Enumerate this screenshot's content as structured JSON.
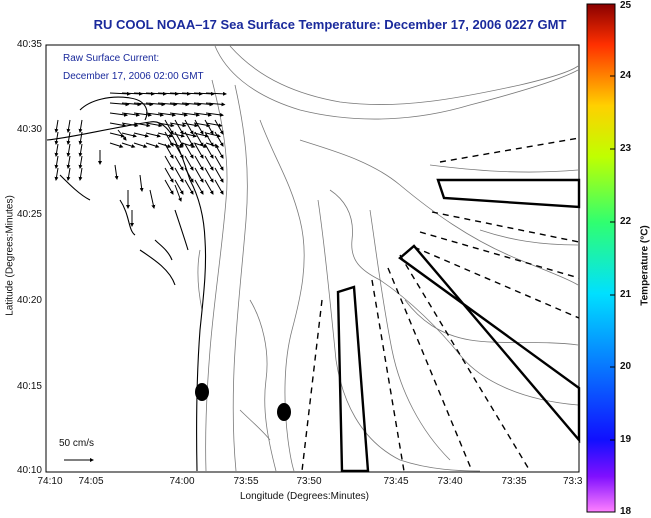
{
  "title": "RU COOL  NOAA–17  Sea Surface Temperature:  December 17, 2006 0227 GMT",
  "annotation": {
    "line1": "Raw Surface Current:",
    "line2": "December 17, 2006 02:00 GMT"
  },
  "scale_label": "50 cm/s",
  "axes": {
    "ylabel": "Latitude (Degrees:Minutes)",
    "xlabel": "Longitude (Degrees:Minutes)",
    "yticks": [
      "40:35",
      "40:30",
      "40:25",
      "40:20",
      "40:15",
      "40:10"
    ],
    "xticks": [
      "74:10",
      "74:05",
      "74:00",
      "73:55",
      "73:50",
      "73:45",
      "73:40",
      "73:35",
      "73:3"
    ]
  },
  "colorbar": {
    "label": "Temperature (°C)",
    "ticks": [
      "25",
      "24",
      "23",
      "22",
      "21",
      "20",
      "19",
      "18"
    ],
    "colors": {
      "c18": "#ff80ff",
      "c18_5": "#8010ff",
      "c19": "#1010ff",
      "c20": "#00e0ff",
      "c21": "#30ff70",
      "c22": "#c0ff00",
      "c23": "#ffd000",
      "c24": "#ff3000",
      "c25": "#8a0000"
    }
  },
  "colors": {
    "title": "#1a2a9c",
    "land_outline": "#000000",
    "bathymetry": "#7a7a7a"
  },
  "markers": {
    "count": 2,
    "type": "buoy"
  }
}
